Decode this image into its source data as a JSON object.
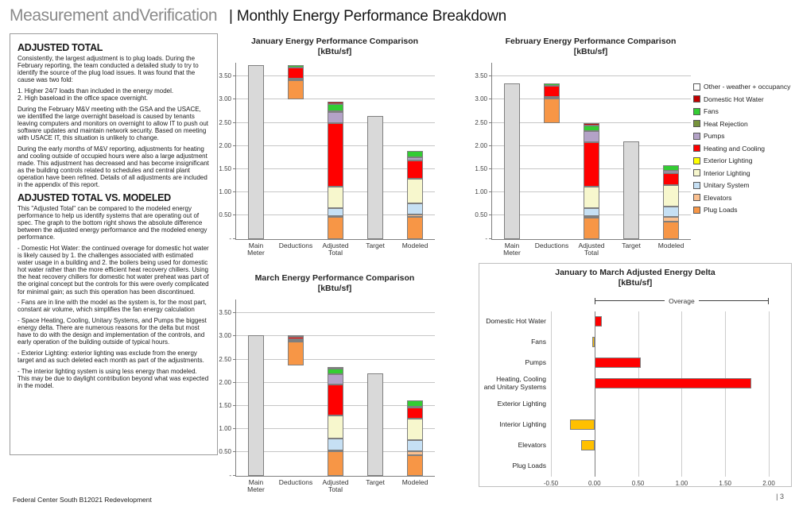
{
  "page": {
    "title": "Measurement andVerification",
    "header": "| Monthly Energy Performance Breakdown",
    "footer_left": "Federal Center South B12021 Redevelopment",
    "footer_right": "| 3"
  },
  "sidebar": {
    "sections": [
      {
        "heading": "ADJUSTED TOTAL",
        "paragraphs": [
          "Consistently, the largest adjustment is to plug loads. During the February reporting, the team conducted a detailed study to try to identify the source of the plug load issues.  It was found that the cause was two fold:",
          "1. Higher 24/7 loads than included in the energy model.\n2. High baseload in the office space overnight.",
          "During the February M&V meeting with the GSA and the USACE, we identified the large overnight baseload is caused by tenants leaving computers and monitors on overnight to allow IT to push out software updates and maintain network security.  Based on meeting with USACE IT, this situation is unlikely to change.",
          "During the early months of M&V reporting, adjustments for heating and cooling outside of occupied hours were also a large adjustment made. This adjustment has decreased and has become insignificant as the building controls related to schedules and central plant operation have been refined.  Details of all adjustments are included in the appendix of this report."
        ]
      },
      {
        "heading": "ADJUSTED TOTAL VS. MODELED",
        "paragraphs": [
          "This \"Adjusted Total\" can be compared to the modeled energy performance to help us identify systems that are operating out of spec. The graph to the bottom right shows the absolute difference between the adjusted energy performance and the modeled energy performance.",
          "- Domestic Hot Water:  the continued overage for domestic hot water is likely caused by 1. the challenges associated with estimated water usage in a building and 2. the boilers being used for domestic hot water rather than the more efficient heat recovery chillers. Using the heat recovery chillers for domestic hot water preheat was part of the original concept but the controls for this were overly complicated for minimal gain; as such this operation has been discontinued.",
          "- Fans are in line with the model as the system is, for the most part, constant air volume, which simplifies the fan energy calculation",
          "- Space Heating, Cooling, Unitary Systems, and Pumps the biggest energy delta. There are numerous reasons for the delta but most have to do with the design and implementation of the controls, and early operation of the building outside of typical hours.",
          "- Exterior Lighting:  exterior lighting was exclude from the energy target and as such deleted each month as part of the adjustments.",
          "- The interior lighting system is using less energy than modeled. This may be due to daylight contribution beyond what was expected in the model."
        ]
      }
    ]
  },
  "colors": {
    "other": "#FFFFFF",
    "dhw": "#C00000",
    "fans": "#33CC33",
    "heat_rejection": "#77933C",
    "pumps": "#B3A2C7",
    "heating_cooling": "#FF0000",
    "ext_lighting": "#FFFF00",
    "int_lighting": "#F7F7CD",
    "unitary": "#C6E0F4",
    "elevators": "#FAC090",
    "plug_loads": "#F79646",
    "meter_gray": "#D9D9D9",
    "delta_pos": "#FF0000",
    "delta_neg": "#FFC000"
  },
  "legend": {
    "items": [
      {
        "key": "other",
        "label": "Other - weather + occupancy"
      },
      {
        "key": "dhw",
        "label": "Domestic Hot Water"
      },
      {
        "key": "fans",
        "label": "Fans"
      },
      {
        "key": "heat_rejection",
        "label": "Heat Rejection"
      },
      {
        "key": "pumps",
        "label": "Pumps"
      },
      {
        "key": "heating_cooling",
        "label": "Heating and Cooling"
      },
      {
        "key": "ext_lighting",
        "label": "Exterior Lighting"
      },
      {
        "key": "int_lighting",
        "label": "Interior Lighting"
      },
      {
        "key": "unitary",
        "label": "Unitary System"
      },
      {
        "key": "elevators",
        "label": "Elevators"
      },
      {
        "key": "plug_loads",
        "label": "Plug Loads"
      }
    ]
  },
  "chart_data": [
    {
      "id": "jan",
      "type": "bar",
      "title": "January Energy Performance Comparison",
      "subtitle": "[kBtu/sf]",
      "ylim": [
        0,
        3.8
      ],
      "grid": true,
      "y_ticks": [
        {
          "label": "3.50",
          "value": 3.5
        },
        {
          "label": "3.00",
          "value": 3.0
        },
        {
          "label": "2.50",
          "value": 2.5
        },
        {
          "label": "2.00",
          "value": 2.0
        },
        {
          "label": "1.50",
          "value": 1.5
        },
        {
          "label": "1.00",
          "value": 1.0
        },
        {
          "label": "0.50",
          "value": 0.5
        },
        {
          "label": "-",
          "value": 0
        }
      ],
      "bars": [
        {
          "category": "Main\nMeter",
          "style": "solid",
          "base": 0,
          "value": 3.75
        },
        {
          "category": "Deductions",
          "style": "stack",
          "base": 3.0,
          "segments": [
            {
              "key": "plug_loads",
              "value": 0.42
            },
            {
              "key": "heat_rejection",
              "value": 0.02
            },
            {
              "key": "other",
              "value": 0.02
            },
            {
              "key": "heating_cooling",
              "value": 0.23
            },
            {
              "key": "fans",
              "value": 0.06
            }
          ]
        },
        {
          "category": "Adjusted\nTotal",
          "style": "stack",
          "base": 0,
          "segments": [
            {
              "key": "plug_loads",
              "value": 0.47
            },
            {
              "key": "elevators",
              "value": 0.02
            },
            {
              "key": "unitary",
              "value": 0.18
            },
            {
              "key": "int_lighting",
              "value": 0.46
            },
            {
              "key": "heating_cooling",
              "value": 1.36
            },
            {
              "key": "pumps",
              "value": 0.24
            },
            {
              "key": "heat_rejection",
              "value": 0.02
            },
            {
              "key": "fans",
              "value": 0.15
            },
            {
              "key": "dhw",
              "value": 0.06
            }
          ]
        },
        {
          "category": "Target",
          "style": "solid",
          "base": 0,
          "value": 2.65
        },
        {
          "category": "Modeled",
          "style": "stack",
          "base": 0,
          "segments": [
            {
              "key": "plug_loads",
              "value": 0.47
            },
            {
              "key": "elevators",
              "value": 0.06
            },
            {
              "key": "unitary",
              "value": 0.24
            },
            {
              "key": "int_lighting",
              "value": 0.52
            },
            {
              "key": "heating_cooling",
              "value": 0.4
            },
            {
              "key": "pumps",
              "value": 0.07
            },
            {
              "key": "fans",
              "value": 0.13
            }
          ]
        }
      ]
    },
    {
      "id": "feb",
      "type": "bar",
      "title": "February Energy Performance Comparison",
      "subtitle": "[kBtu/sf]",
      "ylim": [
        0,
        3.8
      ],
      "grid": true,
      "y_ticks": [
        {
          "label": "3.50",
          "value": 3.5
        },
        {
          "label": "3.00",
          "value": 3.0
        },
        {
          "label": "2.50",
          "value": 2.5
        },
        {
          "label": "2.00",
          "value": 2.0
        },
        {
          "label": "1.50",
          "value": 1.5
        },
        {
          "label": "1.00",
          "value": 1.0
        },
        {
          "label": "0.50",
          "value": 0.5
        },
        {
          "label": "-",
          "value": 0
        }
      ],
      "bars": [
        {
          "category": "Main\nMeter",
          "style": "solid",
          "base": 0,
          "value": 3.35
        },
        {
          "category": "Deductions",
          "style": "stack",
          "base": 2.5,
          "segments": [
            {
              "key": "plug_loads",
              "value": 0.52
            },
            {
              "key": "other",
              "value": 0.04
            },
            {
              "key": "heating_cooling",
              "value": 0.24
            },
            {
              "key": "fans",
              "value": 0.05
            }
          ]
        },
        {
          "category": "Adjusted\nTotal",
          "style": "stack",
          "base": 0,
          "segments": [
            {
              "key": "plug_loads",
              "value": 0.45
            },
            {
              "key": "elevators",
              "value": 0.04
            },
            {
              "key": "unitary",
              "value": 0.18
            },
            {
              "key": "int_lighting",
              "value": 0.46
            },
            {
              "key": "heating_cooling",
              "value": 0.96
            },
            {
              "key": "pumps",
              "value": 0.24
            },
            {
              "key": "fans",
              "value": 0.11
            },
            {
              "key": "dhw",
              "value": 0.06
            }
          ]
        },
        {
          "category": "Target",
          "style": "solid",
          "base": 0,
          "value": 2.1
        },
        {
          "category": "Modeled",
          "style": "stack",
          "base": 0,
          "segments": [
            {
              "key": "plug_loads",
              "value": 0.37
            },
            {
              "key": "elevators",
              "value": 0.1
            },
            {
              "key": "unitary",
              "value": 0.23
            },
            {
              "key": "int_lighting",
              "value": 0.46
            },
            {
              "key": "heating_cooling",
              "value": 0.26
            },
            {
              "key": "pumps",
              "value": 0.04
            },
            {
              "key": "fans",
              "value": 0.12
            }
          ]
        }
      ]
    },
    {
      "id": "mar",
      "type": "bar",
      "title": "March Energy Performance Comparison",
      "subtitle": "[kBtu/sf]",
      "ylim": [
        0,
        3.8
      ],
      "grid": true,
      "y_ticks": [
        {
          "label": "3.50",
          "value": 3.5
        },
        {
          "label": "3.00",
          "value": 3.0
        },
        {
          "label": "2.50",
          "value": 2.5
        },
        {
          "label": "2.00",
          "value": 2.0
        },
        {
          "label": "1.50",
          "value": 1.5
        },
        {
          "label": "1.00",
          "value": 1.0
        },
        {
          "label": "0.50",
          "value": 0.5
        },
        {
          "label": "-",
          "value": 0
        }
      ],
      "bars": [
        {
          "category": "Main\nMeter",
          "style": "solid",
          "base": 0,
          "value": 3.02
        },
        {
          "category": "Deductions",
          "style": "stack",
          "base": 2.38,
          "segments": [
            {
              "key": "plug_loads",
              "value": 0.5
            },
            {
              "key": "heat_rejection",
              "value": 0.03
            },
            {
              "key": "other",
              "value": 0.02
            },
            {
              "key": "heating_cooling",
              "value": 0.06
            },
            {
              "key": "dhw",
              "value": 0.03
            }
          ]
        },
        {
          "category": "Adjusted\nTotal",
          "style": "stack",
          "base": 0,
          "segments": [
            {
              "key": "plug_loads",
              "value": 0.53
            },
            {
              "key": "elevators",
              "value": 0.02
            },
            {
              "key": "unitary",
              "value": 0.25
            },
            {
              "key": "int_lighting",
              "value": 0.49
            },
            {
              "key": "heating_cooling",
              "value": 0.68
            },
            {
              "key": "pumps",
              "value": 0.21
            },
            {
              "key": "fans",
              "value": 0.12
            },
            {
              "key": "dhw",
              "value": 0.04
            }
          ]
        },
        {
          "category": "Target",
          "style": "solid",
          "base": 0,
          "value": 2.2
        },
        {
          "category": "Modeled",
          "style": "stack",
          "base": 0,
          "segments": [
            {
              "key": "plug_loads",
              "value": 0.44
            },
            {
              "key": "elevators",
              "value": 0.09
            },
            {
              "key": "unitary",
              "value": 0.24
            },
            {
              "key": "int_lighting",
              "value": 0.46
            },
            {
              "key": "heating_cooling",
              "value": 0.23
            },
            {
              "key": "pumps",
              "value": 0.03
            },
            {
              "key": "fans",
              "value": 0.13
            }
          ]
        }
      ]
    },
    {
      "id": "delta",
      "type": "bar_horizontal",
      "title": "January to March Adjusted Energy Delta",
      "subtitle": "[kBtu/sf]",
      "xlim": [
        -0.5,
        2.0
      ],
      "grid": true,
      "categories": [
        "Domestic Hot Water",
        "Fans",
        "Pumps",
        "Heating, Cooling\nand Unitary Systems",
        "Exterior Lighting",
        "Interior Lighting",
        "Elevators",
        "Plug Loads"
      ],
      "values": [
        0.08,
        -0.03,
        0.53,
        1.8,
        0,
        -0.28,
        -0.15,
        0
      ],
      "x_ticks": [
        {
          "label": "-0.50",
          "value": -0.5
        },
        {
          "label": "0.00",
          "value": 0.0
        },
        {
          "label": "0.50",
          "value": 0.5
        },
        {
          "label": "1.00",
          "value": 1.0
        },
        {
          "label": "1.50",
          "value": 1.5
        },
        {
          "label": "2.00",
          "value": 2.0
        }
      ],
      "annotation": {
        "label": "Overage",
        "from": 0.0,
        "to": 2.0
      }
    }
  ]
}
